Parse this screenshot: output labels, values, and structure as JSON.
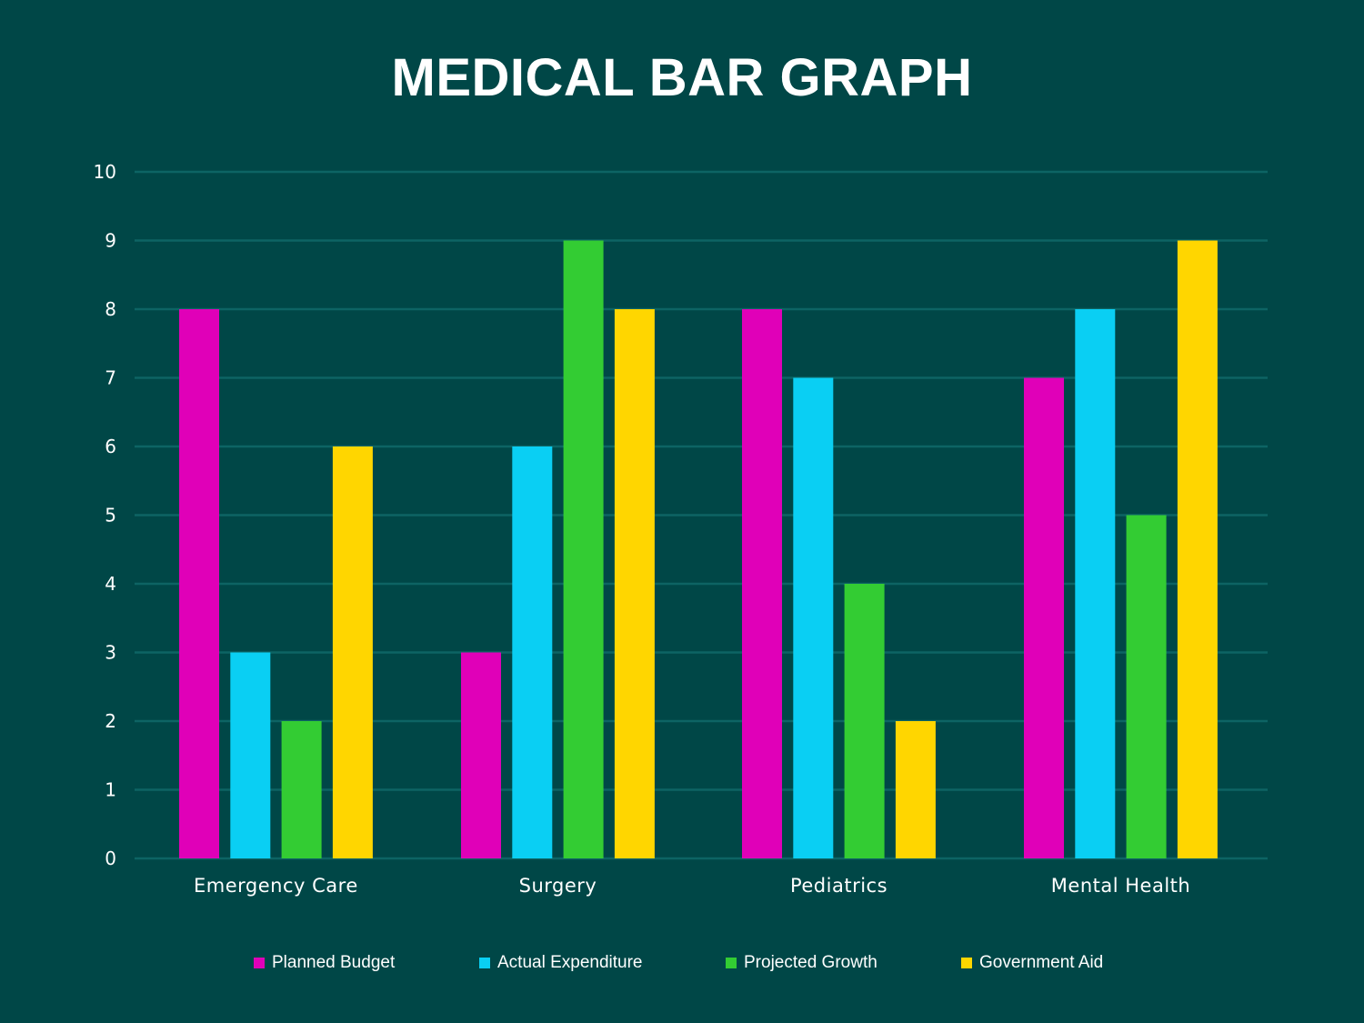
{
  "chart_data": {
    "type": "bar",
    "title": "MEDICAL BAR GRAPH",
    "categories": [
      "Emergency Care",
      "Surgery",
      "Pediatrics",
      "Mental Health"
    ],
    "series": [
      {
        "name": "Planned Budget",
        "color": "#E000B8",
        "values": [
          8,
          3,
          8,
          7
        ]
      },
      {
        "name": "Actual Expenditure",
        "color": "#0ACFF3",
        "values": [
          3,
          6,
          7,
          8
        ]
      },
      {
        "name": "Projected Growth",
        "color": "#33CC33",
        "values": [
          2,
          9,
          4,
          5
        ]
      },
      {
        "name": "Government Aid",
        "color": "#FFD600",
        "values": [
          6,
          8,
          2,
          9
        ]
      }
    ],
    "yticks": [
      "0",
      "1",
      "2",
      "3",
      "4",
      "5",
      "6",
      "7",
      "8",
      "9",
      "10"
    ],
    "ylim": [
      0,
      10
    ],
    "xlabel": "",
    "ylabel": "",
    "grid": true,
    "legend_position": "bottom"
  },
  "colors": {
    "background": "#004747",
    "gridline": "#0D6464",
    "text": "#FFFFFF"
  }
}
